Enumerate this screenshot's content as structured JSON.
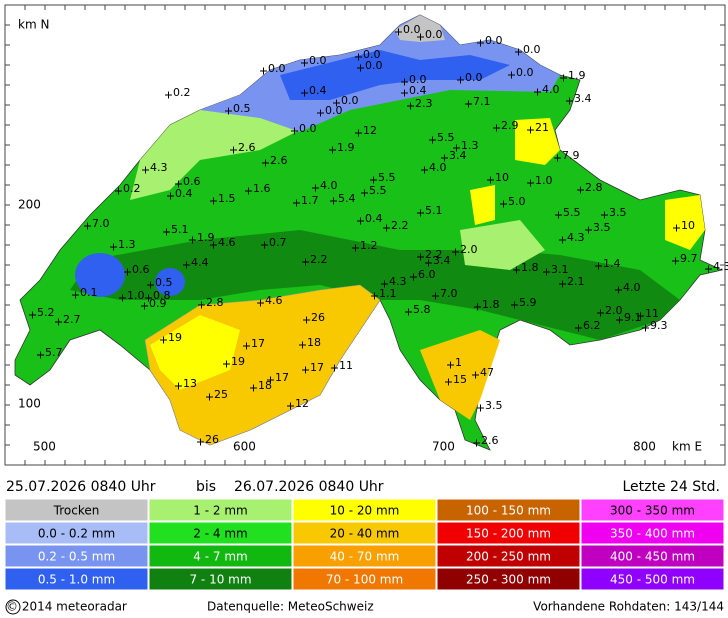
{
  "axes": {
    "y_title": "km N",
    "y_labels": [
      "200",
      "100"
    ],
    "x_labels": [
      "500",
      "600",
      "700",
      "800"
    ],
    "x_title": "km E"
  },
  "map_labels": [
    "0.0",
    "0.0",
    "0.0",
    "0.0",
    "0.0",
    "0.0",
    "0.0",
    "0.0",
    "1.9",
    "0.0",
    "0.0",
    "0.0",
    "0.2",
    "0.4",
    "0.4",
    "4.0",
    "3.4",
    "0.0",
    "0.5",
    "0.0",
    "2.3",
    "7.1",
    "0.0",
    "12",
    "2.9",
    "21",
    "5.5",
    "2.6",
    "1.9",
    "1.3",
    "3.4",
    "7.9",
    "4.3",
    "2.6",
    "4.0",
    "5.5",
    "10",
    "1.0",
    "0.6",
    "0.2",
    "1.6",
    "4.0",
    "5.5",
    "2.8",
    "0.4",
    "1.5",
    "1.7",
    "5.4",
    "5.0",
    "5.1",
    "5.5",
    "3.5",
    "0.4",
    "7.0",
    "2.2",
    "5.1",
    "3.5",
    "10",
    "1.9",
    "4.3",
    "4.6",
    "0.7",
    "1.3",
    "1.2",
    "2.0",
    "2.2",
    "3.4",
    "4.4",
    "2.2",
    "9.7",
    "1.4",
    "4.3",
    "0.6",
    "1.8",
    "3.1",
    "6.0",
    "2.1",
    "0.5",
    "4.3",
    "4.0",
    "0.1",
    "1.0",
    "0.8",
    "7.0",
    "1.1",
    "2.8",
    "0.9",
    "4.6",
    "1.8",
    "5.9",
    "5.2",
    "2.7",
    "5.8",
    "2.0",
    "11",
    "26",
    "9.1",
    "9.3",
    "6.2",
    "19",
    "17",
    "18",
    "5.7",
    "19",
    "11",
    "17",
    "1",
    "15",
    "47",
    "17",
    "13",
    "18",
    "25",
    "12",
    "3.5",
    "26",
    "2.6"
  ],
  "header": {
    "period_start": "25.07.2026 0840 Uhr",
    "separator": "bis",
    "period_end": "26.07.2026 0840 Uhr",
    "window": "Letzte 24 Std."
  },
  "legend": [
    [
      {
        "label": "Trocken",
        "color": "#c4c4c4",
        "text_color": "#000"
      },
      {
        "label": "0.0 - 0.2 mm",
        "color": "#a8bcf8",
        "text_color": "#000"
      },
      {
        "label": "0.2 - 0.5 mm",
        "color": "#7894f0",
        "text_color": "#fff"
      },
      {
        "label": "0.5 - 1.0 mm",
        "color": "#3060f0",
        "text_color": "#fff"
      }
    ],
    [
      {
        "label": "1 - 2 mm",
        "color": "#a8f070",
        "text_color": "#000"
      },
      {
        "label": "2 - 4 mm",
        "color": "#20e020",
        "text_color": "#000"
      },
      {
        "label": "4 - 7 mm",
        "color": "#10b810",
        "text_color": "#fff"
      },
      {
        "label": "7 - 10 mm",
        "color": "#108010",
        "text_color": "#fff"
      }
    ],
    [
      {
        "label": "10 - 20 mm",
        "color": "#ffff00",
        "text_color": "#000"
      },
      {
        "label": "20 - 40 mm",
        "color": "#f8c800",
        "text_color": "#000"
      },
      {
        "label": "40 - 70 mm",
        "color": "#f8a000",
        "text_color": "#fff"
      },
      {
        "label": "70 - 100 mm",
        "color": "#f07800",
        "text_color": "#fff"
      }
    ],
    [
      {
        "label": "100 - 150 mm",
        "color": "#c86400",
        "text_color": "#fff"
      },
      {
        "label": "150 - 200 mm",
        "color": "#f00000",
        "text_color": "#fff"
      },
      {
        "label": "200 - 250 mm",
        "color": "#c00000",
        "text_color": "#fff"
      },
      {
        "label": "250 - 300 mm",
        "color": "#900000",
        "text_color": "#fff"
      }
    ],
    [
      {
        "label": "300 - 350 mm",
        "color": "#ff40ff",
        "text_color": "#000"
      },
      {
        "label": "350 - 400 mm",
        "color": "#f000f0",
        "text_color": "#fff"
      },
      {
        "label": "400 - 450 mm",
        "color": "#c000c0",
        "text_color": "#fff"
      },
      {
        "label": "450 - 500 mm",
        "color": "#9000ff",
        "text_color": "#fff"
      }
    ]
  ],
  "footer": {
    "copyright": "© 2014 meteoradar",
    "source": "Datenquelle: MeteoSchweiz",
    "availability": "Vorhandene Rohdaten: 143/144"
  }
}
